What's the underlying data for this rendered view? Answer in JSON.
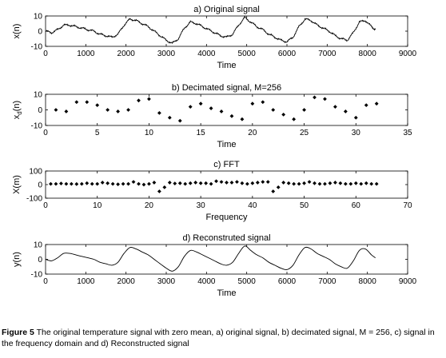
{
  "caption": {
    "label": "Figure 5",
    "text": " The original temperature signal with zero mean, a) original signal, b) decimated signal, M = 256, c) signal in the frequency domain and d) Reconstructed signal"
  },
  "chart_data": [
    {
      "type": "line",
      "title": "a) Original signal",
      "xlabel": "Time",
      "ylabel": "x(n)",
      "xlim": [
        0,
        9000
      ],
      "ylim": [
        -10,
        10
      ],
      "xticks": [
        "0",
        "1000",
        "2000",
        "3000",
        "4000",
        "5000",
        "6000",
        "7000",
        "8000",
        "9000"
      ],
      "yticks": [
        "-10",
        "0",
        "10"
      ],
      "line_color": "#000000",
      "noisy": true,
      "x": [
        0,
        150,
        300,
        450,
        600,
        750,
        900,
        1050,
        1200,
        1350,
        1500,
        1650,
        1800,
        1950,
        2100,
        2250,
        2400,
        2550,
        2700,
        2850,
        3000,
        3150,
        3300,
        3450,
        3600,
        3750,
        3900,
        4050,
        4200,
        4350,
        4500,
        4650,
        4800,
        4950,
        5100,
        5250,
        5400,
        5550,
        5700,
        5850,
        6000,
        6150,
        6300,
        6450,
        6600,
        6750,
        6900,
        7050,
        7200,
        7350,
        7500,
        7650,
        7800,
        7950,
        8100,
        8200
      ],
      "y": [
        0,
        -1,
        1,
        4,
        4,
        3,
        2,
        1,
        0,
        -2,
        -3,
        -4,
        -2,
        4,
        8,
        7,
        5,
        3,
        0,
        -3,
        -6,
        -8,
        -5,
        2,
        6,
        5,
        3,
        1,
        -1,
        -3,
        -4,
        -2,
        4,
        9,
        6,
        3,
        1,
        -2,
        -4,
        -6,
        -7,
        -4,
        3,
        8,
        7,
        4,
        2,
        0,
        -3,
        -5,
        -6,
        -1,
        6,
        7,
        3,
        1
      ]
    },
    {
      "type": "scatter",
      "title": "b) Decimated signal, M=256",
      "xlabel": "Time",
      "ylabel": "x_d(n)",
      "xlim": [
        0,
        35
      ],
      "ylim": [
        -10,
        10
      ],
      "xticks": [
        "0",
        "5",
        "10",
        "15",
        "20",
        "25",
        "30",
        "35"
      ],
      "yticks": [
        "-10",
        "0",
        "10"
      ],
      "marker": "diamond",
      "x": [
        1,
        2,
        3,
        4,
        5,
        6,
        7,
        8,
        9,
        10,
        11,
        12,
        13,
        14,
        15,
        16,
        17,
        18,
        19,
        20,
        21,
        22,
        23,
        24,
        25,
        26,
        27,
        28,
        29,
        30,
        31,
        32
      ],
      "y": [
        0,
        -1,
        5,
        5,
        3,
        0,
        -1,
        0,
        6,
        7,
        -2,
        -5,
        -7,
        2,
        4,
        1,
        -1,
        -4,
        -6,
        4,
        5,
        0,
        -3,
        -6,
        0,
        8,
        7,
        2,
        -1,
        -5,
        3,
        4
      ]
    },
    {
      "type": "scatter",
      "title": "c) FFT",
      "xlabel": "Frequency",
      "ylabel": "X(m)",
      "xlim": [
        0,
        70
      ],
      "ylim": [
        -100,
        100
      ],
      "xticks": [
        "0",
        "10",
        "20",
        "30",
        "40",
        "50",
        "60",
        "70"
      ],
      "yticks": [
        "-100",
        "0",
        "100"
      ],
      "marker": "diamond",
      "x": [
        1,
        2,
        3,
        4,
        5,
        6,
        7,
        8,
        9,
        10,
        11,
        12,
        13,
        14,
        15,
        16,
        17,
        18,
        19,
        20,
        21,
        22,
        23,
        24,
        25,
        26,
        27,
        28,
        29,
        30,
        31,
        32,
        33,
        34,
        35,
        36,
        37,
        38,
        39,
        40,
        41,
        42,
        43,
        44,
        45,
        46,
        47,
        48,
        49,
        50,
        51,
        52,
        53,
        54,
        55,
        56,
        57,
        58,
        59,
        60,
        61,
        62,
        63,
        64
      ],
      "y": [
        5,
        5,
        8,
        5,
        5,
        4,
        5,
        10,
        5,
        5,
        15,
        10,
        5,
        2,
        5,
        5,
        20,
        5,
        0,
        5,
        15,
        -50,
        -20,
        15,
        8,
        10,
        5,
        10,
        15,
        10,
        10,
        5,
        25,
        20,
        15,
        15,
        20,
        10,
        5,
        10,
        15,
        20,
        20,
        -50,
        -20,
        15,
        10,
        5,
        5,
        10,
        20,
        10,
        5,
        5,
        10,
        15,
        10,
        5,
        5,
        10,
        5,
        10,
        5,
        5
      ]
    },
    {
      "type": "line",
      "title": "d) Reconstruted signal",
      "xlabel": "Time",
      "ylabel": "y(n)",
      "xlim": [
        0,
        9000
      ],
      "ylim": [
        -10,
        10
      ],
      "xticks": [
        "0",
        "1000",
        "2000",
        "3000",
        "4000",
        "5000",
        "6000",
        "7000",
        "8000",
        "9000"
      ],
      "yticks": [
        "-10",
        "0",
        "10"
      ],
      "line_color": "#000000",
      "noisy": false,
      "x": [
        0,
        150,
        300,
        450,
        600,
        750,
        900,
        1050,
        1200,
        1350,
        1500,
        1650,
        1800,
        1950,
        2100,
        2250,
        2400,
        2550,
        2700,
        2850,
        3000,
        3150,
        3300,
        3450,
        3600,
        3750,
        3900,
        4050,
        4200,
        4350,
        4500,
        4650,
        4800,
        4950,
        5100,
        5250,
        5400,
        5550,
        5700,
        5850,
        6000,
        6150,
        6300,
        6450,
        6600,
        6750,
        6900,
        7050,
        7200,
        7350,
        7500,
        7650,
        7800,
        7950,
        8100,
        8200
      ],
      "y": [
        0,
        -1,
        1,
        4,
        4,
        3,
        2,
        1,
        0,
        -2,
        -3,
        -4,
        -2,
        4,
        8,
        7,
        5,
        3,
        0,
        -3,
        -6,
        -8,
        -5,
        2,
        6,
        5,
        3,
        1,
        -1,
        -3,
        -4,
        -2,
        4,
        9,
        6,
        3,
        1,
        -2,
        -4,
        -6,
        -7,
        -4,
        3,
        8,
        7,
        4,
        2,
        0,
        -3,
        -5,
        -6,
        -1,
        6,
        7,
        3,
        1
      ]
    }
  ]
}
